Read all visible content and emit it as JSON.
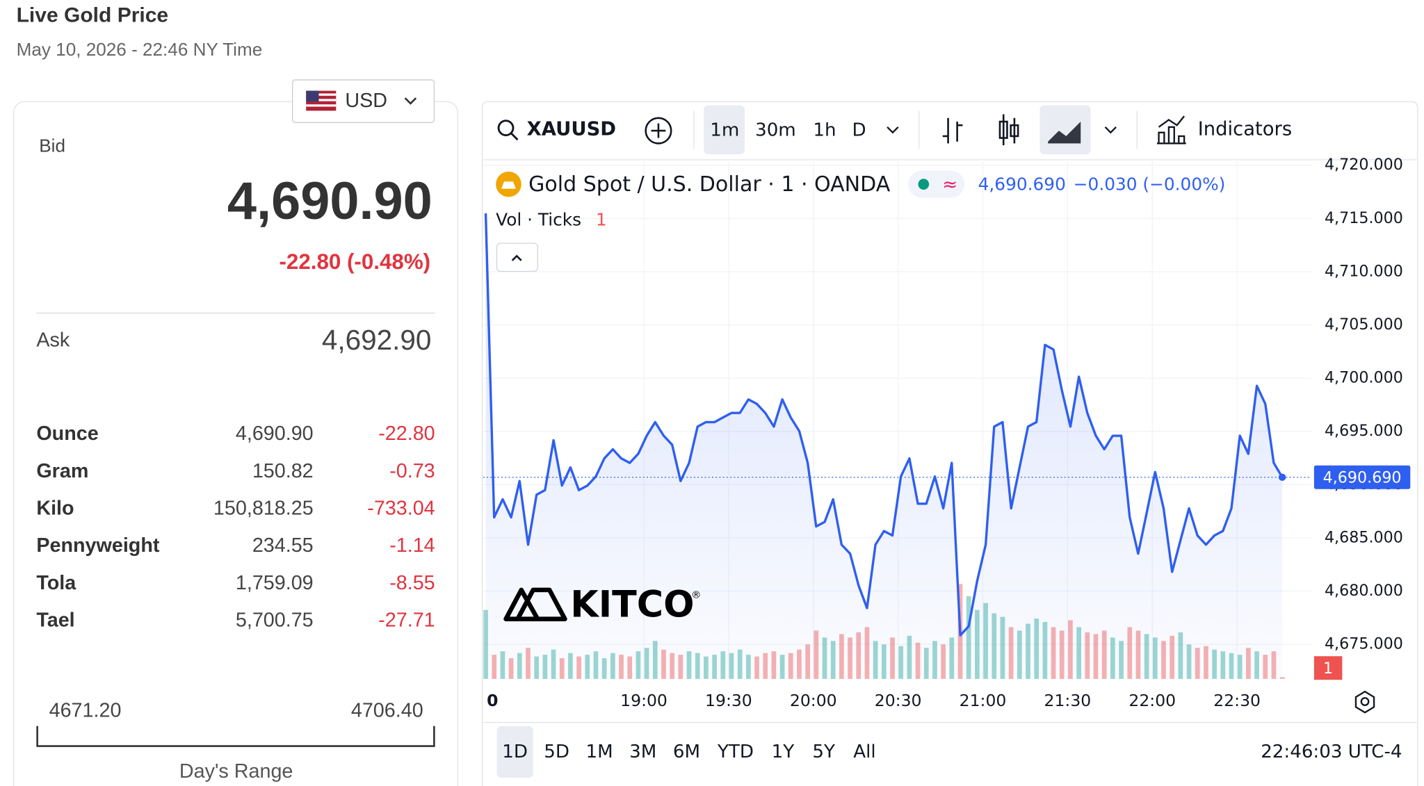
{
  "header": {
    "title": "Live Gold Price",
    "timestamp": "May 10, 2026 - 22:46 NY Time"
  },
  "currency": "USD",
  "quote": {
    "bid_label": "Bid",
    "bid": "4,690.90",
    "change": "-22.80 (-0.48%)",
    "ask_label": "Ask",
    "ask": "4,692.90"
  },
  "units": {
    "rows": [
      [
        "Ounce",
        "4,690.90",
        "-22.80"
      ],
      [
        "Gram",
        "150.82",
        "-0.73"
      ],
      [
        "Kilo",
        "150,818.25",
        "-733.04"
      ],
      [
        "Pennyweight",
        "234.55",
        "-1.14"
      ],
      [
        "Tola",
        "1,759.09",
        "-8.55"
      ],
      [
        "Tael",
        "5,700.75",
        "-27.71"
      ]
    ]
  },
  "day_range": {
    "low": "4671.20",
    "high": "4706.40",
    "label": "Day's Range"
  },
  "toolbar": {
    "symbol": "XAUUSD",
    "intervals": [
      "1m",
      "30m",
      "1h",
      "D"
    ],
    "indicators": "Indicators"
  },
  "logo": {
    "text": "KITCO",
    "mark": "®"
  },
  "ranges": [
    "1D",
    "5D",
    "1M",
    "3M",
    "6M",
    "YTD",
    "1Y",
    "5Y",
    "All"
  ],
  "clock": "22:46:03 UTC-4",
  "chart_data": {
    "type": "line",
    "title": "Gold Spot / U.S. Dollar · 1 · OANDA",
    "last_label": "4,690.690",
    "change_label": "−0.030 (−0.00%)",
    "color": "#2f5ff0",
    "grid": true,
    "x": [
      1084,
      1087,
      1090,
      1093,
      1096,
      1099,
      1102,
      1105,
      1108,
      1111,
      1114,
      1117,
      1120,
      1123,
      1126,
      1129,
      1132,
      1135,
      1138,
      1141,
      1144,
      1147,
      1150,
      1153,
      1156,
      1159,
      1162,
      1165,
      1168,
      1171,
      1174,
      1177,
      1180,
      1183,
      1186,
      1189,
      1192,
      1195,
      1198,
      1201,
      1204,
      1207,
      1210,
      1213,
      1216,
      1219,
      1222,
      1225,
      1228,
      1231,
      1234,
      1237,
      1240,
      1243,
      1246,
      1249,
      1252,
      1255,
      1258,
      1261,
      1264,
      1267,
      1270,
      1273,
      1276,
      1279,
      1282,
      1285,
      1288,
      1291,
      1294,
      1297,
      1300,
      1303,
      1306,
      1309,
      1312,
      1315,
      1318,
      1321,
      1324,
      1327,
      1330,
      1333,
      1336,
      1339,
      1342,
      1345,
      1348,
      1351,
      1354,
      1357,
      1360,
      1363,
      1366
    ],
    "values": [
      4715.48,
      4686.92,
      4688.62,
      4686.92,
      4690.33,
      4684.36,
      4689.05,
      4689.48,
      4694.17,
      4689.91,
      4691.61,
      4689.48,
      4689.91,
      4690.76,
      4692.46,
      4693.32,
      4692.46,
      4692.04,
      4692.89,
      4694.59,
      4695.87,
      4694.59,
      4693.74,
      4690.33,
      4692.04,
      4695.45,
      4695.87,
      4695.87,
      4696.3,
      4696.73,
      4696.73,
      4698.0,
      4697.58,
      4696.73,
      4695.45,
      4698.0,
      4696.3,
      4695.02,
      4692.04,
      4686.07,
      4686.5,
      4688.62,
      4684.36,
      4683.51,
      4680.53,
      4678.4,
      4684.36,
      4685.64,
      4685.22,
      4690.76,
      4692.46,
      4688.2,
      4688.2,
      4690.76,
      4687.77,
      4692.04,
      4675.84,
      4676.69,
      4680.95,
      4684.36,
      4695.45,
      4695.87,
      4687.77,
      4691.61,
      4695.45,
      4695.87,
      4703.12,
      4702.69,
      4698.86,
      4695.45,
      4700.14,
      4696.73,
      4694.59,
      4693.32,
      4694.59,
      4694.59,
      4686.92,
      4683.51,
      4687.35,
      4691.18,
      4687.77,
      4681.81,
      4684.79,
      4687.77,
      4685.22,
      4684.36,
      4685.22,
      4685.64,
      4687.77,
      4694.59,
      4692.89,
      4699.28,
      4697.58,
      4692.04,
      4690.69
    ],
    "xlim": [
      1083.1,
      1376.3
    ],
    "xticks": [
      {
        "value": 1080,
        "label": "0"
      },
      {
        "value": 1140,
        "label": "19:00"
      },
      {
        "value": 1170,
        "label": "19:30"
      },
      {
        "value": 1200,
        "label": "20:00"
      },
      {
        "value": 1230,
        "label": "20:30"
      },
      {
        "value": 1260,
        "label": "21:00"
      },
      {
        "value": 1290,
        "label": "21:30"
      },
      {
        "value": 1320,
        "label": "22:00"
      },
      {
        "value": 1350,
        "label": "22:30"
      }
    ],
    "ylim": [
      4671.75,
      4720.34
    ],
    "yticks": [
      {
        "value": 4675,
        "label": "4,675.000"
      },
      {
        "value": 4680,
        "label": "4,680.000"
      },
      {
        "value": 4685,
        "label": "4,685.000"
      },
      {
        "value": 4690,
        "label": "4,690.000"
      },
      {
        "value": 4695,
        "label": "4,695.000"
      },
      {
        "value": 4700,
        "label": "4,700.000"
      },
      {
        "value": 4705,
        "label": "4,705.000"
      },
      {
        "value": 4710,
        "label": "4,710.000"
      },
      {
        "value": 4715,
        "label": "4,715.000"
      },
      {
        "value": 4720,
        "label": "4,720.000"
      }
    ],
    "y2lim": [
      0,
      300
    ],
    "volume": {
      "label": "Vol · Ticks",
      "up_color": "#26a69a",
      "down_color": "#ef5350",
      "values": [
        40,
        14,
        16,
        12,
        15,
        18,
        13,
        14,
        17,
        12,
        15,
        13,
        14,
        16,
        12,
        15,
        14,
        13,
        16,
        18,
        22,
        17,
        15,
        14,
        16,
        15,
        13,
        14,
        16,
        15,
        17,
        14,
        13,
        15,
        16,
        14,
        15,
        17,
        20,
        28,
        24,
        22,
        26,
        24,
        27,
        30,
        22,
        20,
        24,
        19,
        25,
        21,
        18,
        22,
        20,
        24,
        55,
        48,
        40,
        44,
        38,
        36,
        30,
        28,
        32,
        35,
        33,
        30,
        28,
        34,
        30,
        27,
        26,
        28,
        24,
        22,
        30,
        28,
        26,
        24,
        22,
        25,
        27,
        20,
        18,
        19,
        17,
        16,
        15,
        14,
        18,
        16,
        14,
        16,
        1
      ]
    }
  }
}
